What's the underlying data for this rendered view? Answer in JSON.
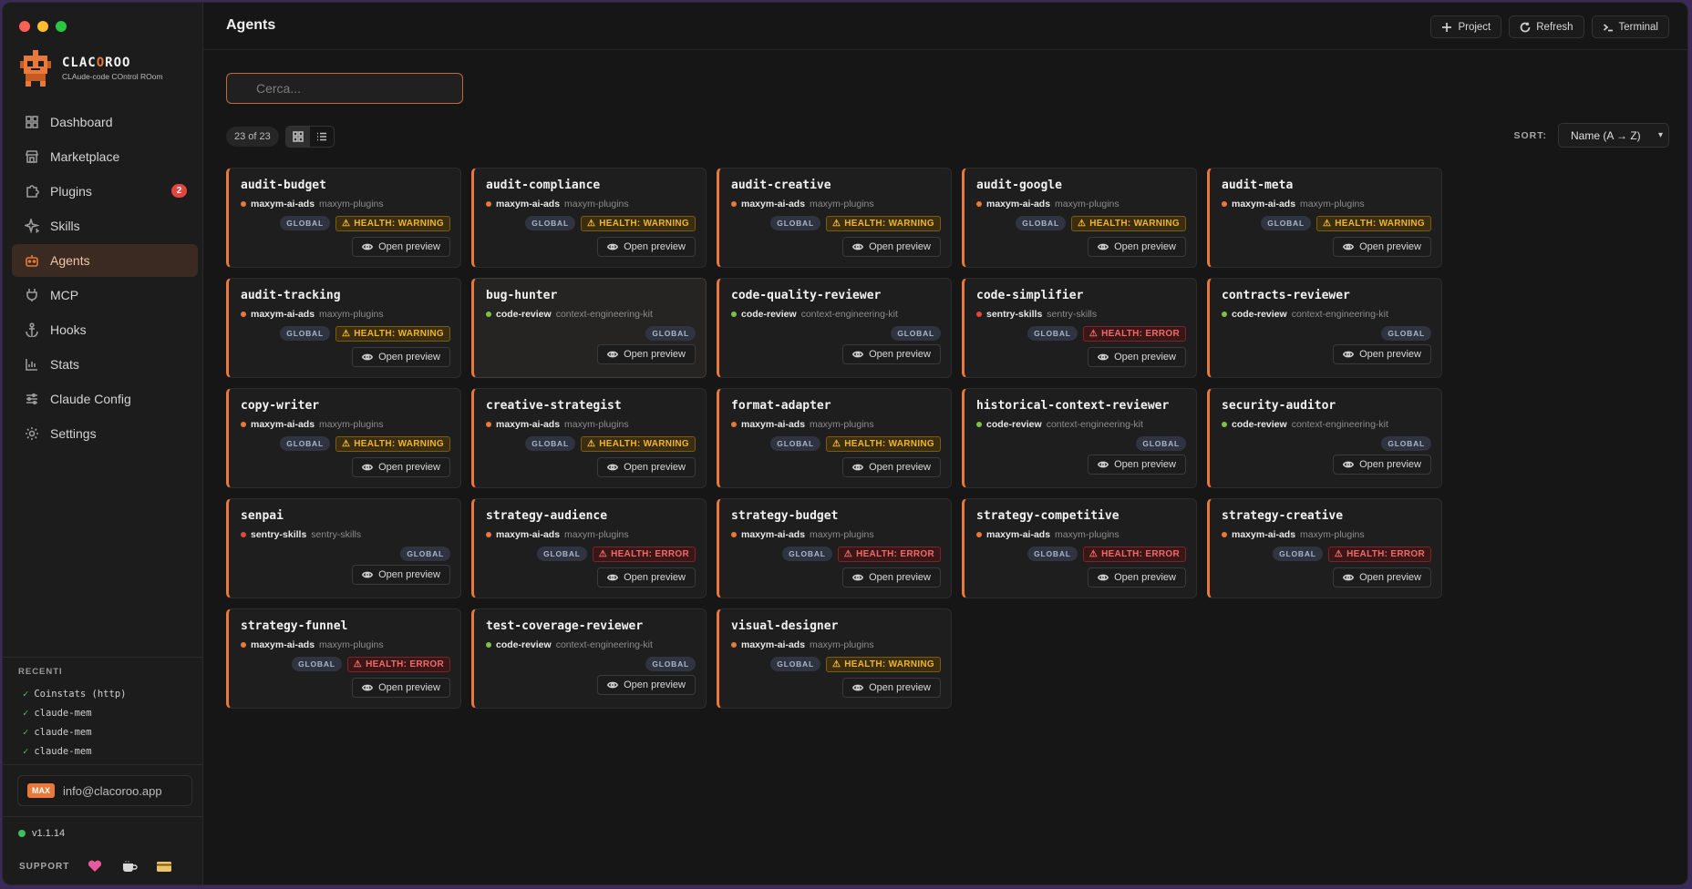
{
  "window": {
    "title": "Agents"
  },
  "brand": {
    "name_a": "CLAC",
    "name_b": "O",
    "name_c": "ROO",
    "tagline": "CLAude-code COntrol ROom"
  },
  "sidebar": {
    "items": [
      {
        "label": "Dashboard",
        "icon": "dashboard-icon",
        "active": false
      },
      {
        "label": "Marketplace",
        "icon": "store-icon",
        "active": false
      },
      {
        "label": "Plugins",
        "icon": "puzzle-icon",
        "active": false,
        "badge": "2"
      },
      {
        "label": "Skills",
        "icon": "sparkle-icon",
        "active": false
      },
      {
        "label": "Agents",
        "icon": "robot-icon",
        "active": true
      },
      {
        "label": "MCP",
        "icon": "plug-icon",
        "active": false
      },
      {
        "label": "Hooks",
        "icon": "anchor-icon",
        "active": false
      },
      {
        "label": "Stats",
        "icon": "bar-chart-icon",
        "active": false
      },
      {
        "label": "Claude Config",
        "icon": "sliders-icon",
        "active": false
      },
      {
        "label": "Settings",
        "icon": "gear-icon",
        "active": false
      }
    ],
    "recent_title": "RECENTI",
    "recent": [
      "Coinstats (http)",
      "claude-mem",
      "claude-mem",
      "claude-mem"
    ],
    "plan": "MAX",
    "email": "info@clacoroo.app",
    "version": "v1.1.14",
    "support_label": "SUPPORT"
  },
  "header": {
    "title": "Agents",
    "actions": [
      {
        "label": "Project",
        "icon": "plus-icon"
      },
      {
        "label": "Refresh",
        "icon": "refresh-icon"
      },
      {
        "label": "Terminal",
        "icon": "terminal-icon"
      }
    ]
  },
  "toolbar": {
    "search_placeholder": "Cerca...",
    "count": "23 of 23",
    "sort_label": "SORT:",
    "sort_value": "Name (A → Z)"
  },
  "labels": {
    "global": "GLOBAL",
    "preview": "Open preview"
  },
  "colors": {
    "accent": "#e8793a",
    "warning": "#f0b429",
    "error": "#f06a6a",
    "ok": "#7cc24a"
  },
  "agents": [
    {
      "name": "audit-budget",
      "source": "maxym-ai-ads",
      "package": "maxym-plugins",
      "dot": "#e8793a",
      "health": "HEALTH: WARNING",
      "health_level": "warning"
    },
    {
      "name": "audit-compliance",
      "source": "maxym-ai-ads",
      "package": "maxym-plugins",
      "dot": "#e8793a",
      "health": "HEALTH: WARNING",
      "health_level": "warning"
    },
    {
      "name": "audit-creative",
      "source": "maxym-ai-ads",
      "package": "maxym-plugins",
      "dot": "#e8793a",
      "health": "HEALTH: WARNING",
      "health_level": "warning"
    },
    {
      "name": "audit-google",
      "source": "maxym-ai-ads",
      "package": "maxym-plugins",
      "dot": "#e8793a",
      "health": "HEALTH: WARNING",
      "health_level": "warning"
    },
    {
      "name": "audit-meta",
      "source": "maxym-ai-ads",
      "package": "maxym-plugins",
      "dot": "#e8793a",
      "health": "HEALTH: WARNING",
      "health_level": "warning"
    },
    {
      "name": "audit-tracking",
      "source": "maxym-ai-ads",
      "package": "maxym-plugins",
      "dot": "#e8793a",
      "health": "HEALTH: WARNING",
      "health_level": "warning"
    },
    {
      "name": "bug-hunter",
      "source": "code-review",
      "package": "context-engineering-kit",
      "dot": "#7cc24a",
      "health": "",
      "health_level": "",
      "selected": true
    },
    {
      "name": "code-quality-reviewer",
      "source": "code-review",
      "package": "context-engineering-kit",
      "dot": "#7cc24a",
      "health": "",
      "health_level": ""
    },
    {
      "name": "code-simplifier",
      "source": "sentry-skills",
      "package": "sentry-skills",
      "dot": "#e0473f",
      "health": "HEALTH: ERROR",
      "health_level": "error"
    },
    {
      "name": "contracts-reviewer",
      "source": "code-review",
      "package": "context-engineering-kit",
      "dot": "#7cc24a",
      "health": "",
      "health_level": ""
    },
    {
      "name": "copy-writer",
      "source": "maxym-ai-ads",
      "package": "maxym-plugins",
      "dot": "#e8793a",
      "health": "HEALTH: WARNING",
      "health_level": "warning"
    },
    {
      "name": "creative-strategist",
      "source": "maxym-ai-ads",
      "package": "maxym-plugins",
      "dot": "#e8793a",
      "health": "HEALTH: WARNING",
      "health_level": "warning"
    },
    {
      "name": "format-adapter",
      "source": "maxym-ai-ads",
      "package": "maxym-plugins",
      "dot": "#e8793a",
      "health": "HEALTH: WARNING",
      "health_level": "warning"
    },
    {
      "name": "historical-context-reviewer",
      "source": "code-review",
      "package": "context-engineering-kit",
      "dot": "#7cc24a",
      "health": "",
      "health_level": ""
    },
    {
      "name": "security-auditor",
      "source": "code-review",
      "package": "context-engineering-kit",
      "dot": "#7cc24a",
      "health": "",
      "health_level": ""
    },
    {
      "name": "senpai",
      "source": "sentry-skills",
      "package": "sentry-skills",
      "dot": "#e0473f",
      "health": "",
      "health_level": ""
    },
    {
      "name": "strategy-audience",
      "source": "maxym-ai-ads",
      "package": "maxym-plugins",
      "dot": "#e8793a",
      "health": "HEALTH: ERROR",
      "health_level": "error"
    },
    {
      "name": "strategy-budget",
      "source": "maxym-ai-ads",
      "package": "maxym-plugins",
      "dot": "#e8793a",
      "health": "HEALTH: ERROR",
      "health_level": "error"
    },
    {
      "name": "strategy-competitive",
      "source": "maxym-ai-ads",
      "package": "maxym-plugins",
      "dot": "#e8793a",
      "health": "HEALTH: ERROR",
      "health_level": "error"
    },
    {
      "name": "strategy-creative",
      "source": "maxym-ai-ads",
      "package": "maxym-plugins",
      "dot": "#e8793a",
      "health": "HEALTH: ERROR",
      "health_level": "error"
    },
    {
      "name": "strategy-funnel",
      "source": "maxym-ai-ads",
      "package": "maxym-plugins",
      "dot": "#e8793a",
      "health": "HEALTH: ERROR",
      "health_level": "error"
    },
    {
      "name": "test-coverage-reviewer",
      "source": "code-review",
      "package": "context-engineering-kit",
      "dot": "#7cc24a",
      "health": "",
      "health_level": ""
    },
    {
      "name": "visual-designer",
      "source": "maxym-ai-ads",
      "package": "maxym-plugins",
      "dot": "#e8793a",
      "health": "HEALTH: WARNING",
      "health_level": "warning"
    }
  ]
}
